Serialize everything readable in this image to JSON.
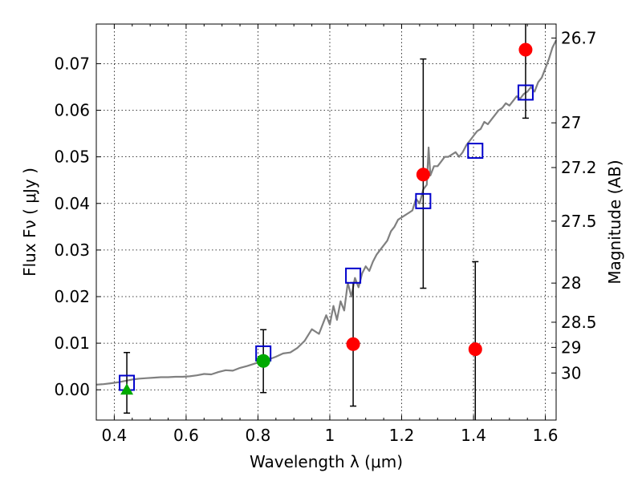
{
  "chart_data": {
    "type": "scatter",
    "xlabel": "Wavelength  λ (μm)",
    "ylabel": "Flux  Fν  ( μJy )",
    "y2label": "Magnitude (AB)",
    "xlim": [
      0.35,
      1.63
    ],
    "ylim": [
      -0.0065,
      0.0785
    ],
    "grid": true,
    "x_ticks": [
      0.4,
      0.6,
      0.8,
      1.0,
      1.2,
      1.4,
      1.6
    ],
    "x_tick_labels": [
      "0.4",
      "0.6",
      "0.8",
      "1",
      "1.2",
      "1.4",
      "1.6"
    ],
    "y_ticks": [
      0.0,
      0.01,
      0.02,
      0.03,
      0.04,
      0.05,
      0.06,
      0.07
    ],
    "y_tick_labels": [
      "0.00",
      "0.01",
      "0.02",
      "0.03",
      "0.04",
      "0.05",
      "0.06",
      "0.07"
    ],
    "y2_ticks": [
      {
        "label": "26.7",
        "flux": 0.0755
      },
      {
        "label": "27",
        "flux": 0.0573
      },
      {
        "label": "27.2",
        "flux": 0.0477
      },
      {
        "label": "27.5",
        "flux": 0.0362
      },
      {
        "label": "28",
        "flux": 0.0229
      },
      {
        "label": "28.5",
        "flux": 0.0145
      },
      {
        "label": "29",
        "flux": 0.0091
      },
      {
        "label": "30",
        "flux": 0.0036
      }
    ],
    "series": [
      {
        "kind": "spectrum",
        "color": "#808080",
        "x": [
          0.35,
          0.37,
          0.39,
          0.41,
          0.43,
          0.45,
          0.47,
          0.49,
          0.51,
          0.53,
          0.55,
          0.57,
          0.59,
          0.61,
          0.63,
          0.65,
          0.67,
          0.69,
          0.71,
          0.73,
          0.75,
          0.77,
          0.79,
          0.81,
          0.83,
          0.85,
          0.87,
          0.89,
          0.91,
          0.93,
          0.95,
          0.97,
          0.99,
          1.0,
          1.01,
          1.02,
          1.03,
          1.04,
          1.05,
          1.06,
          1.07,
          1.08,
          1.09,
          1.1,
          1.11,
          1.12,
          1.13,
          1.14,
          1.15,
          1.16,
          1.17,
          1.18,
          1.19,
          1.2,
          1.21,
          1.22,
          1.23,
          1.24,
          1.25,
          1.26,
          1.27,
          1.275,
          1.28,
          1.29,
          1.3,
          1.31,
          1.32,
          1.33,
          1.34,
          1.35,
          1.36,
          1.37,
          1.38,
          1.39,
          1.4,
          1.41,
          1.42,
          1.43,
          1.44,
          1.45,
          1.46,
          1.47,
          1.48,
          1.49,
          1.5,
          1.51,
          1.52,
          1.53,
          1.54,
          1.55,
          1.56,
          1.57,
          1.58,
          1.59,
          1.6,
          1.61,
          1.62,
          1.63
        ],
        "y": [
          0.0011,
          0.0012,
          0.0014,
          0.0016,
          0.0019,
          0.0022,
          0.0024,
          0.0025,
          0.0026,
          0.0027,
          0.0027,
          0.0028,
          0.0028,
          0.0029,
          0.0031,
          0.0034,
          0.0033,
          0.0038,
          0.0042,
          0.0041,
          0.0047,
          0.0051,
          0.0056,
          0.0061,
          0.0065,
          0.0071,
          0.0078,
          0.008,
          0.009,
          0.0105,
          0.013,
          0.012,
          0.016,
          0.014,
          0.018,
          0.015,
          0.019,
          0.017,
          0.023,
          0.02,
          0.024,
          0.022,
          0.025,
          0.0265,
          0.0255,
          0.0275,
          0.029,
          0.03,
          0.031,
          0.032,
          0.034,
          0.035,
          0.0365,
          0.037,
          0.0375,
          0.038,
          0.0385,
          0.041,
          0.04,
          0.043,
          0.044,
          0.052,
          0.046,
          0.048,
          0.048,
          0.049,
          0.05,
          0.05,
          0.0505,
          0.051,
          0.05,
          0.051,
          0.0525,
          0.0535,
          0.0545,
          0.0555,
          0.056,
          0.0575,
          0.057,
          0.058,
          0.059,
          0.06,
          0.0605,
          0.0615,
          0.061,
          0.062,
          0.063,
          0.0625,
          0.0635,
          0.064,
          0.065,
          0.064,
          0.066,
          0.067,
          0.069,
          0.071,
          0.0735,
          0.075
        ]
      },
      {
        "kind": "markers",
        "marker": "square",
        "color": "#0000cc",
        "points": [
          {
            "x": 0.435,
            "y": 0.0015,
            "err_low": 0.0065,
            "err_high": 0.0065
          },
          {
            "x": 0.815,
            "y": 0.0078
          },
          {
            "x": 1.065,
            "y": 0.0245
          },
          {
            "x": 1.26,
            "y": 0.0405
          },
          {
            "x": 1.405,
            "y": 0.0513
          },
          {
            "x": 1.545,
            "y": 0.0638
          }
        ]
      },
      {
        "kind": "markers",
        "marker": "circle",
        "color": "#ff0000",
        "points": [
          {
            "x": 1.065,
            "y": 0.0098,
            "err_low": 0.0133,
            "err_high": 0.0132
          },
          {
            "x": 1.26,
            "y": 0.0462,
            "err_low": 0.0244,
            "err_high": 0.0248
          },
          {
            "x": 1.405,
            "y": 0.0087,
            "err_low": 0.0162,
            "err_high": 0.0188
          },
          {
            "x": 1.545,
            "y": 0.073,
            "err_low": 0.0147,
            "err_high": 0.006
          }
        ]
      },
      {
        "kind": "markers",
        "marker": "circle",
        "color": "#00aa00",
        "points": [
          {
            "x": 0.815,
            "y": 0.0062,
            "err_low": 0.0068,
            "err_high": 0.0067
          }
        ]
      },
      {
        "kind": "markers",
        "marker": "triangle",
        "color": "#00aa00",
        "points": [
          {
            "x": 0.435,
            "y": 0.0
          }
        ]
      }
    ]
  }
}
